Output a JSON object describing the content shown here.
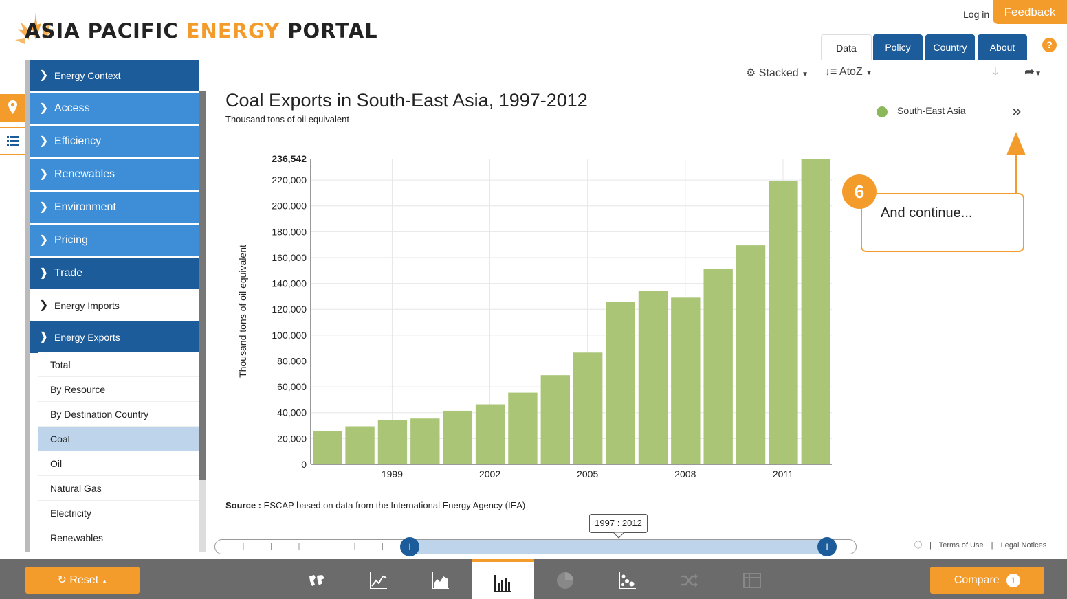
{
  "header": {
    "logo_word1": "ASIA PACIFIC ",
    "logo_word2": "ENERGY",
    "logo_word3": " PORTAL",
    "login": "Log in",
    "feedback": "Feedback",
    "tabs": [
      {
        "label": "Data"
      },
      {
        "label": "Policy"
      },
      {
        "label": "Country"
      },
      {
        "label": "About"
      }
    ],
    "help": "?"
  },
  "sidebar": {
    "context": "Energy Context",
    "items": [
      {
        "label": "Access"
      },
      {
        "label": "Efficiency"
      },
      {
        "label": "Renewables"
      },
      {
        "label": "Environment"
      },
      {
        "label": "Pricing"
      },
      {
        "label": "Trade"
      },
      {
        "label": "Energy Imports"
      },
      {
        "label": "Energy Exports"
      }
    ],
    "subitems": [
      {
        "label": "Total"
      },
      {
        "label": "By Resource"
      },
      {
        "label": "By Destination Country"
      },
      {
        "label": "Coal"
      },
      {
        "label": "Oil"
      },
      {
        "label": "Natural Gas"
      },
      {
        "label": "Electricity"
      },
      {
        "label": "Renewables"
      }
    ],
    "active_subitem": "Coal"
  },
  "toolbar": {
    "stacked": "Stacked",
    "sort": "AtoZ"
  },
  "colors": {
    "accent": "#f39c2c",
    "nav_dark": "#1d5c9a",
    "nav_blue": "#3d8ed6",
    "bar": "#a9c575",
    "legend": "#8cb85c"
  },
  "chart_data": {
    "type": "bar",
    "title": "Coal Exports in South-East Asia, 1997-2012",
    "subtitle": "Thousand tons of oil equivalent",
    "ylabel": "Thousand tons of oil equivalent",
    "ylim": [
      0,
      236542
    ],
    "y_max_label": "236,542",
    "yticks": [
      "0",
      "20,000",
      "40,000",
      "60,000",
      "80,000",
      "100,000",
      "120,000",
      "140,000",
      "160,000",
      "180,000",
      "200,000",
      "220,000"
    ],
    "xtick_labels": [
      "1999",
      "2002",
      "2005",
      "2008",
      "2011"
    ],
    "categories": [
      "1997",
      "1998",
      "1999",
      "2000",
      "2001",
      "2002",
      "2003",
      "2004",
      "2005",
      "2006",
      "2007",
      "2008",
      "2009",
      "2010",
      "2011",
      "2012"
    ],
    "series": [
      {
        "name": "South-East Asia",
        "values": [
          26000,
          29500,
          34500,
          35500,
          41500,
          46500,
          55500,
          69000,
          86500,
          125500,
          134000,
          129000,
          151500,
          169500,
          219500,
          236542
        ]
      }
    ],
    "grid": true,
    "legend": "top-right"
  },
  "callout": {
    "number": "6",
    "text": "And continue..."
  },
  "source": {
    "label": "Source :",
    "text": "ESCAP based on data from the International Energy Agency (IEA)"
  },
  "slider": {
    "range_label": "1997 : 2012",
    "handle_left": "I",
    "handle_right": "I"
  },
  "footer": {
    "terms": "Terms of Use",
    "legal": "Legal Notices"
  },
  "bottombar": {
    "reset": "Reset",
    "compare": "Compare",
    "compare_count": "1"
  }
}
